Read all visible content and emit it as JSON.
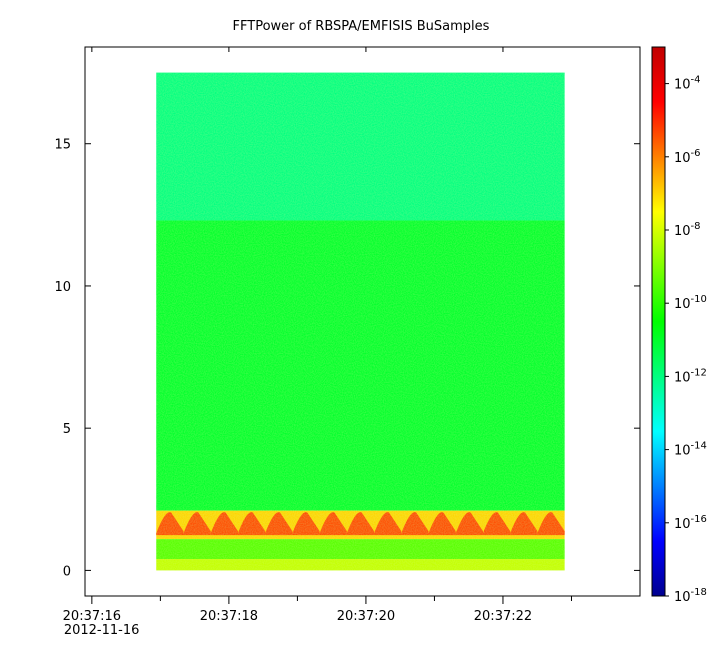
{
  "chart_data": {
    "type": "heatmap",
    "title": "FFTPower of RBSPA/EMFISIS  BuSamples",
    "xlabel": "",
    "ylabel": "",
    "x_ticks": [
      {
        "label": "20:37:16",
        "sublabel": "2012-11-16",
        "t": 16.0
      },
      {
        "label": "20:37:18",
        "t": 18.0
      },
      {
        "label": "20:37:20",
        "t": 20.0
      },
      {
        "label": "20:37:22",
        "t": 22.0
      }
    ],
    "x_minor_ticks": [
      17.0,
      19.0,
      21.0,
      23.0
    ],
    "xlim_seconds": [
      15.9,
      24.0
    ],
    "data_x_range_seconds": [
      16.94,
      22.9
    ],
    "y_ticks": [
      0,
      5,
      10,
      15
    ],
    "ylim": [
      -0.9,
      18.4
    ],
    "data_y_range": [
      0,
      17.5
    ],
    "colorbar": {
      "scale": "log",
      "range": [
        1e-18,
        0.001
      ],
      "tick_labels": [
        {
          "base": "10",
          "exp": "-4",
          "value": -4
        },
        {
          "base": "10",
          "exp": "-6",
          "value": -6
        },
        {
          "base": "10",
          "exp": "-8",
          "value": -8
        },
        {
          "base": "10",
          "exp": "-10",
          "value": -10
        },
        {
          "base": "10",
          "exp": "-12",
          "value": -12
        },
        {
          "base": "10",
          "exp": "-14",
          "value": -14
        },
        {
          "base": "10",
          "exp": "-16",
          "value": -16
        },
        {
          "base": "10",
          "exp": "-18",
          "value": -18
        }
      ],
      "colormap": [
        "#00008f",
        "#0000ff",
        "#0080ff",
        "#00ffff",
        "#00ff80",
        "#00ff00",
        "#80ff00",
        "#ffff00",
        "#ff8000",
        "#ff0000",
        "#c00000"
      ]
    },
    "bands": [
      {
        "y_range": [
          12.3,
          17.5
        ],
        "power_log10": -12.0
      },
      {
        "y_range": [
          2.1,
          12.3
        ],
        "power_log10": -11.0
      },
      {
        "y_range": [
          1.1,
          2.1
        ],
        "power_log10": -7.0,
        "note_peaks": "repeating orange/red arcs near 1.4–2.0"
      },
      {
        "y_range": [
          0.4,
          1.1
        ],
        "power_log10": -9.5
      },
      {
        "y_range": [
          0.0,
          0.4
        ],
        "power_log10": -8.2
      }
    ]
  }
}
